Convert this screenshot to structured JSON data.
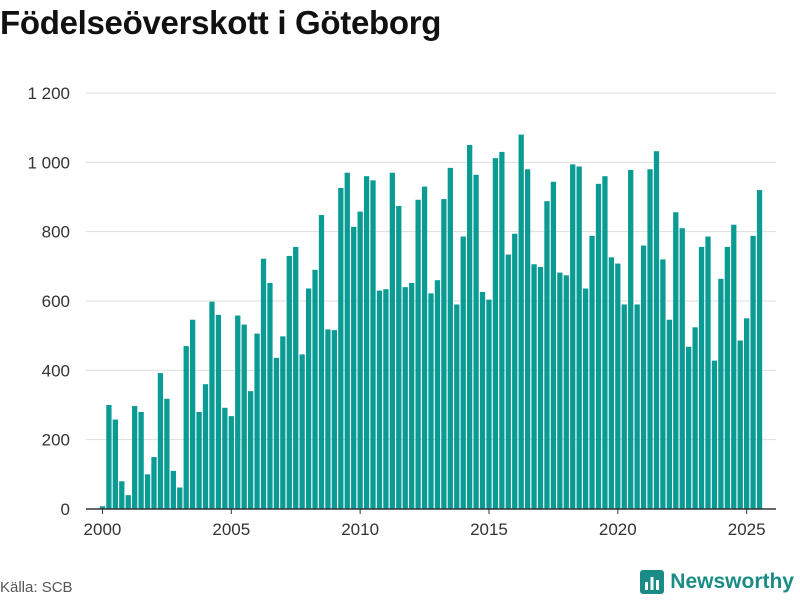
{
  "title": "Födelseöverskott i Göteborg",
  "source": "Källa: SCB",
  "brand": "Newsworthy",
  "colors": {
    "bar": "#0a9b94",
    "grid": "#dddddd",
    "brand": "#1a8c86"
  },
  "chart_data": {
    "type": "bar",
    "title": "Födelseöverskott i Göteborg",
    "xlabel": "",
    "ylabel": "",
    "ylim": [
      0,
      1200
    ],
    "yticks": [
      0,
      200,
      400,
      600,
      800,
      1000,
      1200
    ],
    "ytick_labels": [
      "0",
      "200",
      "400",
      "600",
      "800",
      "1 000",
      "1 200"
    ],
    "xlim": [
      1999.4,
      2026.1
    ],
    "xticks": [
      2000,
      2005,
      2010,
      2015,
      2020,
      2025
    ],
    "xtick_labels": [
      "2000",
      "2005",
      "2010",
      "2015",
      "2020",
      "2025"
    ],
    "grid": true,
    "period": "quarterly",
    "start": "2000-Q1",
    "values": [
      8,
      300,
      258,
      80,
      40,
      297,
      280,
      100,
      150,
      392,
      318,
      110,
      62,
      470,
      546,
      280,
      360,
      598,
      560,
      292,
      268,
      558,
      532,
      340,
      506,
      722,
      652,
      436,
      498,
      730,
      756,
      446,
      636,
      690,
      848,
      518,
      516,
      926,
      970,
      814,
      858,
      960,
      948,
      630,
      634,
      970,
      874,
      640,
      652,
      892,
      930,
      622,
      660,
      894,
      984,
      590,
      786,
      1050,
      964,
      626,
      604,
      1012,
      1030,
      734,
      794,
      1080,
      980,
      706,
      698,
      888,
      944,
      682,
      674,
      994,
      988,
      636,
      788,
      938,
      960,
      726,
      708,
      590,
      978,
      590,
      760,
      980,
      1032,
      720,
      546,
      856,
      810,
      468,
      524,
      756,
      786,
      428,
      664,
      756,
      820,
      486,
      550,
      788,
      920
    ]
  }
}
